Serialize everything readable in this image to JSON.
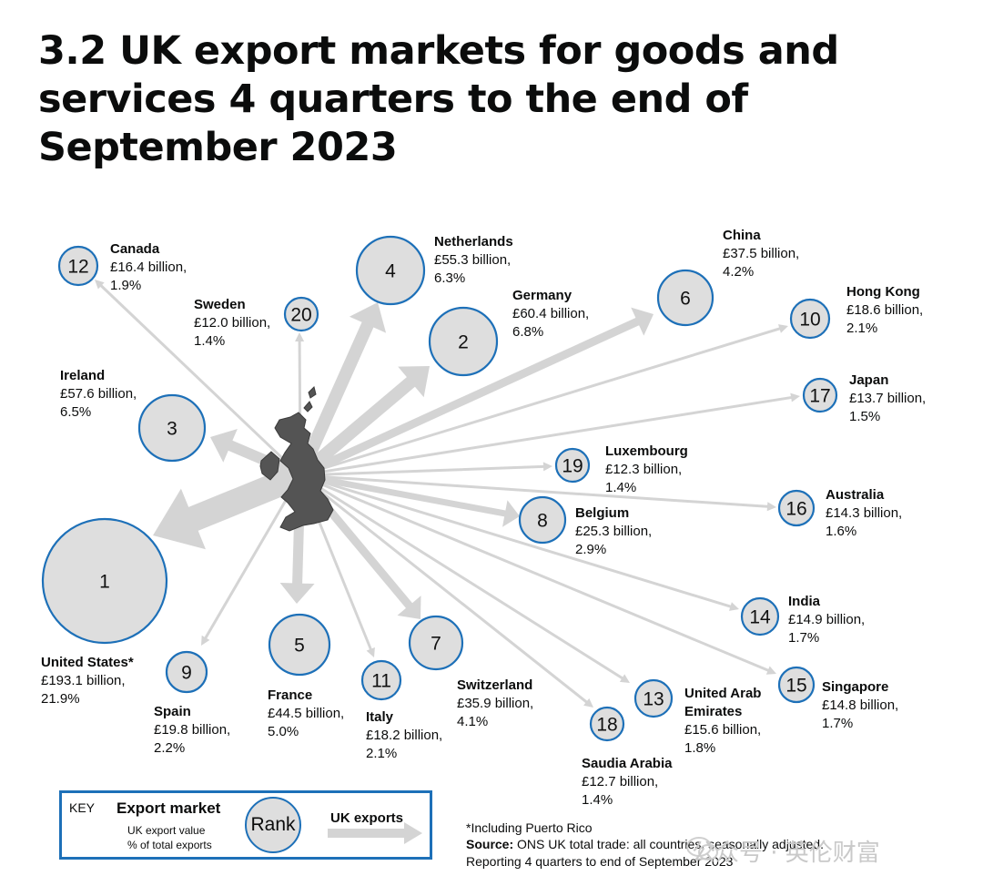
{
  "title": "3.2 UK export markets for goods and services 4 quarters to the end of September 2023",
  "colors": {
    "circle_fill": "#dedede",
    "circle_stroke": "#1d70b8",
    "arrow": "#d4d4d4",
    "uk_map": "#545454",
    "key_border": "#1d70b8"
  },
  "markets": [
    {
      "rank": "1",
      "name": "United States*",
      "value": "£193.1 billion,",
      "share": "21.9%"
    },
    {
      "rank": "2",
      "name": "Germany",
      "value": "£60.4 billion,",
      "share": "6.8%"
    },
    {
      "rank": "3",
      "name": "Ireland",
      "value": "£57.6 billion,",
      "share": "6.5%"
    },
    {
      "rank": "4",
      "name": "Netherlands",
      "value": "£55.3 billion,",
      "share": "6.3%"
    },
    {
      "rank": "5",
      "name": "France",
      "value": "£44.5 billion,",
      "share": "5.0%"
    },
    {
      "rank": "6",
      "name": "China",
      "value": "£37.5 billion,",
      "share": "4.2%"
    },
    {
      "rank": "7",
      "name": "Switzerland",
      "value": "£35.9 billion,",
      "share": "4.1%"
    },
    {
      "rank": "8",
      "name": "Belgium",
      "value": "£25.3 billion,",
      "share": "2.9%"
    },
    {
      "rank": "9",
      "name": "Spain",
      "value": "£19.8 billion,",
      "share": "2.2%"
    },
    {
      "rank": "10",
      "name": "Hong Kong",
      "value": "£18.6 billion,",
      "share": "2.1%"
    },
    {
      "rank": "11",
      "name": "Italy",
      "value": "£18.2 billion,",
      "share": "2.1%"
    },
    {
      "rank": "12",
      "name": "Canada",
      "value": "£16.4 billion,",
      "share": "1.9%"
    },
    {
      "rank": "13",
      "name": "United Arab",
      "name2": "Emirates",
      "value": "£15.6 billion,",
      "share": "1.8%"
    },
    {
      "rank": "14",
      "name": "India",
      "value": "£14.9 billion,",
      "share": "1.7%"
    },
    {
      "rank": "15",
      "name": "Singapore",
      "value": "£14.8 billion,",
      "share": "1.7%"
    },
    {
      "rank": "16",
      "name": "Australia",
      "value": "£14.3 billion,",
      "share": "1.6%"
    },
    {
      "rank": "17",
      "name": "Japan",
      "value": "£13.7 billion,",
      "share": "1.5%"
    },
    {
      "rank": "18",
      "name": "Saudia Arabia",
      "value": "£12.7 billion,",
      "share": "1.4%"
    },
    {
      "rank": "19",
      "name": "Luxembourg",
      "value": "£12.3 billion,",
      "share": "1.4%"
    },
    {
      "rank": "20",
      "name": "Sweden",
      "value": "£12.0 billion,",
      "share": "1.4%"
    }
  ],
  "key": {
    "label": "KEY",
    "title": "Export market",
    "sub1": "UK export value",
    "sub2": "% of total exports",
    "rank": "Rank",
    "arrow_label": "UK exports"
  },
  "notes": {
    "footnote": "*Including Puerto Rico",
    "source_label": "Source:",
    "source": " ONS UK total trade: all countries, seasonally adjusted.",
    "period": "Reporting 4 quarters to end of September 2023"
  },
  "watermark": "公众号 · 英伦财富"
}
